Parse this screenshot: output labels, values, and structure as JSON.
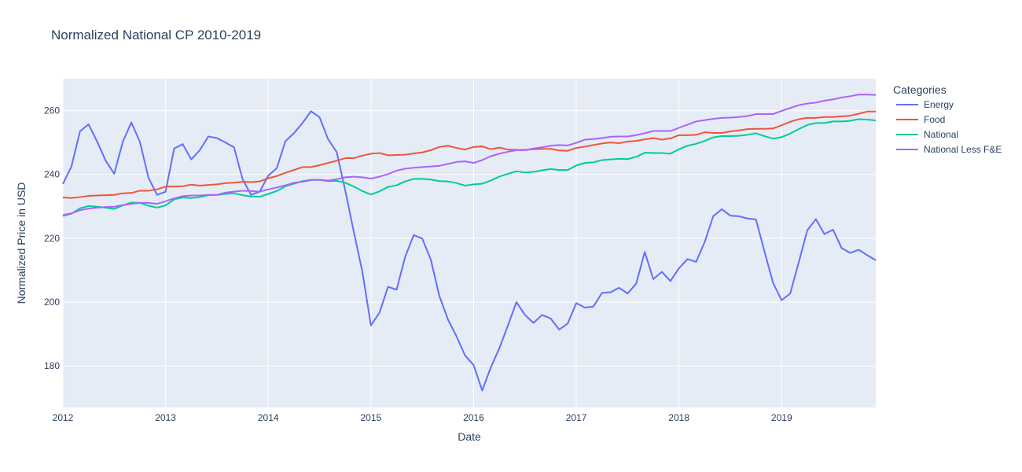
{
  "chart_data": {
    "type": "line",
    "title": "Normalized National CP 2010-2019",
    "xlabel": "Date",
    "ylabel": "Normalized Price in USD",
    "legend_title": "Categories",
    "legend_position": "right",
    "grid": true,
    "x_start": "2012-01",
    "x_step_months": 1,
    "xlim": [
      "2012-01",
      "2019-12"
    ],
    "x_ticks": [
      "2012",
      "2013",
      "2014",
      "2015",
      "2016",
      "2017",
      "2018",
      "2019"
    ],
    "ylim": [
      167,
      270
    ],
    "y_ticks": [
      180,
      200,
      220,
      240,
      260
    ],
    "series": [
      {
        "name": "Energy",
        "color": "#636efa",
        "values": [
          237,
          242.5,
          253.5,
          255.7,
          250.3,
          244.3,
          240.2,
          250.2,
          256.3,
          250.2,
          239.0,
          233.6,
          234.6,
          248.1,
          249.5,
          244.7,
          247.6,
          251.9,
          251.4,
          250.0,
          248.5,
          238.5,
          233.6,
          234.6,
          239.6,
          242.0,
          250.4,
          252.9,
          256.1,
          259.8,
          257.9,
          251.0,
          247.0,
          235.0,
          222.0,
          209.5,
          192.7,
          196.7,
          204.8,
          203.9,
          214.2,
          221.0,
          219.9,
          213.3,
          201.9,
          194.6,
          189.3,
          183.3,
          180.3,
          172.3,
          179.5,
          185.5,
          192.6,
          200.0,
          196.0,
          193.5,
          196.0,
          194.9,
          191.4,
          193.3,
          199.7,
          198.3,
          198.6,
          202.9,
          203.1,
          204.5,
          202.7,
          205.8,
          215.7,
          207.2,
          209.5,
          206.6,
          210.6,
          213.5,
          212.6,
          218.8,
          226.9,
          229.1,
          227.1,
          226.9,
          226.2,
          225.9,
          215.8,
          206.0,
          200.6,
          202.7,
          212.5,
          222.5,
          226.0,
          221.3,
          222.7,
          217.0,
          215.4,
          216.4,
          214.7,
          213.1
        ]
      },
      {
        "name": "Food",
        "color": "#ef553b",
        "values": [
          232.8,
          232.6,
          232.9,
          233.3,
          233.4,
          233.5,
          233.6,
          234.1,
          234.2,
          234.9,
          234.9,
          235.3,
          236.2,
          236.2,
          236.3,
          236.8,
          236.5,
          236.7,
          236.9,
          237.3,
          237.4,
          237.7,
          237.6,
          237.8,
          238.8,
          239.5,
          240.5,
          241.4,
          242.3,
          242.3,
          242.9,
          243.6,
          244.3,
          245.1,
          245.1,
          245.9,
          246.5,
          246.7,
          246.0,
          246.1,
          246.2,
          246.6,
          246.9,
          247.6,
          248.6,
          249.0,
          248.3,
          247.8,
          248.6,
          248.8,
          247.9,
          248.4,
          247.8,
          247.7,
          247.7,
          247.9,
          248.0,
          248.0,
          247.5,
          247.4,
          248.3,
          248.7,
          249.2,
          249.7,
          250.0,
          249.8,
          250.3,
          250.5,
          251.0,
          251.4,
          250.9,
          251.3,
          252.3,
          252.3,
          252.4,
          253.2,
          253.0,
          253.0,
          253.5,
          253.8,
          254.2,
          254.3,
          254.3,
          254.4,
          255.4,
          256.5,
          257.3,
          257.7,
          257.7,
          258.0,
          258.0,
          258.2,
          258.4,
          259.0,
          259.7,
          259.7
        ]
      },
      {
        "name": "National",
        "color": "#00cc96",
        "values": [
          227.0,
          227.7,
          229.4,
          230.1,
          229.9,
          229.6,
          229.2,
          230.3,
          231.2,
          231.1,
          230.2,
          229.6,
          230.3,
          232.2,
          232.8,
          232.6,
          232.9,
          233.5,
          233.6,
          233.9,
          234.1,
          233.5,
          233.1,
          233.0,
          233.9,
          234.8,
          236.3,
          237.1,
          237.9,
          238.3,
          238.3,
          237.9,
          238.0,
          237.4,
          236.2,
          234.8,
          233.7,
          234.7,
          236.1,
          236.6,
          237.8,
          238.6,
          238.6,
          238.4,
          237.9,
          237.8,
          237.3,
          236.5,
          236.9,
          237.1,
          238.1,
          239.3,
          240.2,
          241.0,
          240.6,
          240.8,
          241.3,
          241.7,
          241.4,
          241.4,
          242.8,
          243.6,
          243.8,
          244.5,
          244.7,
          244.9,
          244.8,
          245.5,
          246.8,
          246.7,
          246.7,
          246.5,
          247.9,
          249.0,
          249.6,
          250.5,
          251.6,
          252.0,
          252.0,
          252.1,
          252.4,
          252.9,
          252.0,
          251.2,
          251.7,
          252.8,
          254.2,
          255.5,
          256.1,
          256.1,
          256.6,
          256.6,
          256.8,
          257.3,
          257.2,
          256.9
        ]
      },
      {
        "name": "National Less F&E",
        "color": "#ab63fa",
        "values": [
          227.3,
          227.8,
          228.8,
          229.3,
          229.6,
          229.8,
          229.9,
          230.4,
          230.8,
          231.1,
          231.1,
          230.8,
          231.6,
          232.5,
          233.2,
          233.4,
          233.4,
          233.6,
          233.6,
          234.3,
          234.6,
          234.9,
          234.8,
          234.6,
          235.3,
          235.9,
          236.6,
          237.4,
          237.7,
          238.2,
          238.3,
          238.1,
          238.5,
          239.1,
          239.3,
          239.1,
          238.7,
          239.3,
          240.1,
          241.2,
          241.8,
          242.1,
          242.3,
          242.5,
          242.7,
          243.3,
          243.9,
          244.1,
          243.6,
          244.5,
          245.7,
          246.5,
          247.1,
          247.6,
          247.6,
          248.1,
          248.5,
          249.0,
          249.2,
          249.1,
          249.9,
          250.9,
          251.1,
          251.4,
          251.8,
          251.9,
          251.9,
          252.3,
          252.9,
          253.6,
          253.6,
          253.6,
          254.6,
          255.6,
          256.6,
          257.0,
          257.4,
          257.7,
          257.8,
          258.0,
          258.3,
          258.9,
          258.9,
          258.9,
          259.9,
          260.8,
          261.7,
          262.2,
          262.5,
          263.1,
          263.5,
          264.1,
          264.5,
          265.0,
          265.0,
          264.9
        ]
      }
    ]
  }
}
